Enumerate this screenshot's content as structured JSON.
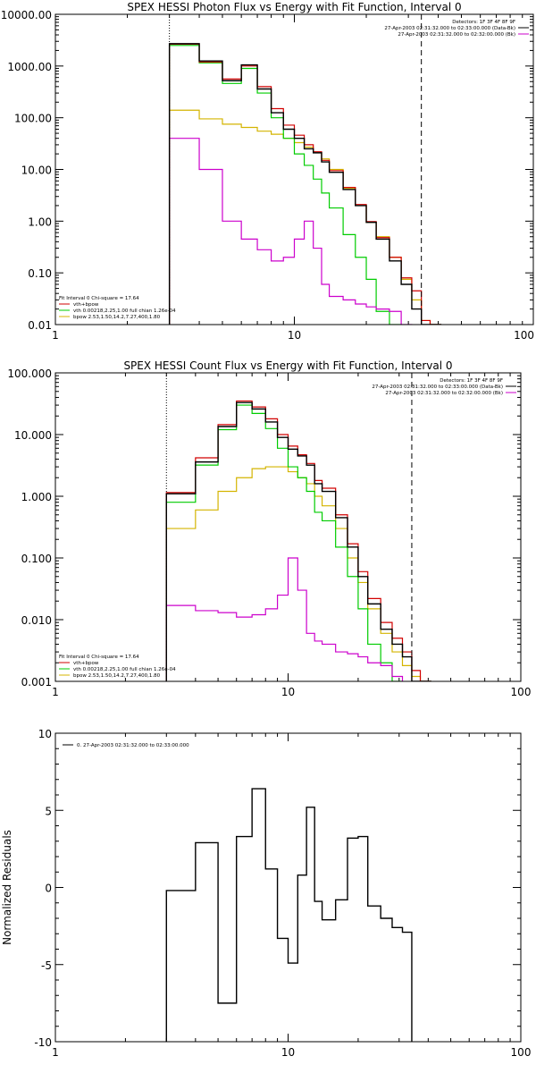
{
  "colors": {
    "data": "#000000",
    "total": "#d10000",
    "vth": "#00cc00",
    "bpow": "#d4b400",
    "fit_thin": "#cc00cc",
    "range_mark": "#000000"
  },
  "chart_data": [
    {
      "type": "line",
      "title": "SPEX HESSI Photon Flux vs Energy with Fit Function, Interval 0",
      "xlabel": "",
      "ylabel": "",
      "xscale": "log",
      "yscale": "log",
      "xlim": [
        1,
        100
      ],
      "ylim": [
        0.01,
        10000
      ],
      "xticks": [
        1,
        10,
        100
      ],
      "xtick_labels": [
        "1",
        "10",
        "100"
      ],
      "yticks": [
        0.01,
        0.1,
        1,
        10,
        100,
        1000,
        10000
      ],
      "ytick_labels": [
        "0.01",
        "0.10",
        "1.00",
        "10.00",
        "100.00",
        "1000.00",
        "10000.00"
      ],
      "energy_edges": [
        3,
        4,
        5,
        6,
        7,
        8,
        9,
        10,
        11,
        12,
        13,
        14,
        16,
        18,
        20,
        22,
        25,
        28,
        31,
        34,
        37,
        41
      ],
      "fit_range": [
        3,
        34
      ],
      "legend_header": [
        "Detectors: 1F 3F 4F 8F 9F",
        "27-Apr-2003 02:31:32.000 to 02:33:00.000 (Data-Bk)",
        "27-Apr-2003 02:31:32.000 to 02:32:00.000 (Bk)"
      ],
      "legend_fit": [
        "Fit Interval 0    Chi-square = 17.64",
        "vth+bpow",
        "vth 0.00218,2.25,1.00   full chian 1.26e-04",
        "bpow 2.53,1.50,14.2,7.27,400,1.80"
      ],
      "series": [
        {
          "name": "27-Apr-2003 02:31:32.000 to 02:33:00.000 (Data-Bk)",
          "style": "data",
          "values": [
            2700,
            1250,
            520,
            1050,
            360,
            125,
            60,
            40,
            25,
            21,
            14,
            8.8,
            4.1,
            2.0,
            0.95,
            0.45,
            0.17,
            0.06,
            0.02,
            0.01,
            0.01
          ]
        },
        {
          "name": "vth+bpow",
          "style": "total",
          "values": [
            2650,
            1200,
            560,
            1000,
            400,
            150,
            72,
            46,
            30,
            22,
            15,
            9.5,
            4.5,
            2.1,
            0.98,
            0.48,
            0.2,
            0.08,
            0.045,
            0.012,
            0.009
          ]
        },
        {
          "name": "vth",
          "style": "vth",
          "values": [
            2500,
            1150,
            460,
            900,
            300,
            100,
            40,
            20,
            12,
            6.5,
            3.5,
            1.8,
            0.55,
            0.2,
            0.075,
            0.018,
            0.005
          ]
        },
        {
          "name": "bpow",
          "style": "bpow",
          "values": [
            140,
            95,
            75,
            65,
            55,
            48,
            40,
            33,
            27,
            21,
            16,
            10,
            4.3,
            2.0,
            0.95,
            0.5,
            0.2,
            0.075,
            0.03,
            0.012,
            0.01
          ]
        },
        {
          "name": "27-Apr-2003 02:31:32.000 to 02:32:00.000 (Bk)",
          "style": "fit_thin",
          "values": [
            40,
            10,
            1.0,
            0.45,
            0.28,
            0.17,
            0.2,
            0.45,
            1.0,
            0.3,
            0.06,
            0.035,
            0.03,
            0.025,
            0.022,
            0.02,
            0.018,
            0.008
          ]
        }
      ]
    },
    {
      "type": "line",
      "title": "SPEX HESSI Count Flux vs Energy with Fit Function, Interval 0",
      "xlabel": "",
      "ylabel": "",
      "xscale": "log",
      "yscale": "log",
      "xlim": [
        1,
        100
      ],
      "ylim": [
        0.001,
        100
      ],
      "xticks": [
        1,
        10,
        100
      ],
      "xtick_labels": [
        "1",
        "10",
        "100"
      ],
      "yticks": [
        0.001,
        0.01,
        0.1,
        1,
        10,
        100
      ],
      "ytick_labels": [
        "0.001",
        "0.010",
        "0.100",
        "1.000",
        "10.000",
        "100.000"
      ],
      "energy_edges": [
        3,
        4,
        5,
        6,
        7,
        8,
        9,
        10,
        11,
        12,
        13,
        14,
        16,
        18,
        20,
        22,
        25,
        28,
        31,
        34,
        37,
        41
      ],
      "fit_range": [
        3,
        34
      ],
      "legend_header": [
        "Detectors: 1F 3F 4F 8F 9F",
        "27-Apr-2003 02:31:32.000 to 02:33:00.000 (Data-Bk)",
        "27-Apr-2003 02:31:32.000 to 02:32:00.000 (Bk)"
      ],
      "legend_fit": [
        "Fit Interval 0    Chi-square = 17.64",
        "vth+bpow",
        "vth 0.00218,2.25,1.00   full chian 1.26e-04",
        "bpow 2.53,1.50,14.2,7.27,400,1.80"
      ],
      "series": [
        {
          "name": "27-Apr-2003 02:31:32.000 to 02:33:00.000 (Data-Bk)",
          "style": "data",
          "values": [
            1.1,
            3.6,
            13.5,
            33,
            26,
            16,
            9,
            5.8,
            4.5,
            3.2,
            1.6,
            1.2,
            0.45,
            0.15,
            0.05,
            0.018,
            0.007,
            0.004,
            0.0025,
            0.001,
            0.001
          ]
        },
        {
          "name": "vth+bpow",
          "style": "total",
          "values": [
            1.15,
            4.2,
            14.5,
            35,
            28,
            18,
            10,
            6.5,
            4.7,
            3.4,
            1.8,
            1.35,
            0.5,
            0.17,
            0.06,
            0.022,
            0.009,
            0.005,
            0.003,
            0.0015,
            0.001
          ]
        },
        {
          "name": "vth",
          "style": "vth",
          "values": [
            0.8,
            3.2,
            12,
            30,
            22,
            12.5,
            6,
            3.0,
            2.0,
            1.2,
            0.55,
            0.4,
            0.15,
            0.05,
            0.015,
            0.004,
            0.002,
            0.001
          ]
        },
        {
          "name": "bpow",
          "style": "bpow",
          "values": [
            0.3,
            0.6,
            1.2,
            2.0,
            2.8,
            3.0,
            3.0,
            2.5,
            2.0,
            1.6,
            1.0,
            0.7,
            0.3,
            0.1,
            0.04,
            0.015,
            0.006,
            0.003,
            0.0018,
            0.0012,
            0.001
          ]
        },
        {
          "name": "27-Apr-2003 02:31:32.000 to 02:32:00.000 (Bk)",
          "style": "fit_thin",
          "values": [
            0.017,
            0.014,
            0.013,
            0.011,
            0.012,
            0.015,
            0.025,
            0.1,
            0.03,
            0.006,
            0.0045,
            0.004,
            0.003,
            0.0028,
            0.0025,
            0.002,
            0.0018,
            0.0012
          ]
        }
      ]
    },
    {
      "type": "line",
      "title": "",
      "xlabel": "",
      "ylabel": "Normalized Residuals",
      "xscale": "log",
      "yscale": "linear",
      "xlim": [
        1,
        100
      ],
      "ylim": [
        -10,
        10
      ],
      "xticks": [
        1,
        10,
        100
      ],
      "xtick_labels": [
        "1",
        "10",
        "100"
      ],
      "yticks": [
        -10,
        -5,
        0,
        5,
        10
      ],
      "ytick_labels": [
        "-10",
        "-5",
        "0",
        "5",
        "10"
      ],
      "energy_edges": [
        3,
        4,
        5,
        6,
        7,
        8,
        9,
        10,
        11,
        12,
        13,
        14,
        16,
        18,
        20,
        22,
        25,
        28,
        31,
        34
      ],
      "legend_header": [
        "0. 27-Apr-2003 02:31:32.000 to 02:33:00.000"
      ],
      "series": [
        {
          "name": "0. 27-Apr-2003 02:31:32.000 to 02:33:00.000",
          "style": "data",
          "values": [
            -0.2,
            2.9,
            -7.5,
            3.3,
            6.4,
            1.2,
            -3.3,
            -4.9,
            0.8,
            5.2,
            -0.9,
            -2.1,
            -0.8,
            3.2,
            3.3,
            -1.2,
            -2.0,
            -2.6,
            -2.9
          ],
          "drop_to_min": true
        }
      ]
    }
  ]
}
